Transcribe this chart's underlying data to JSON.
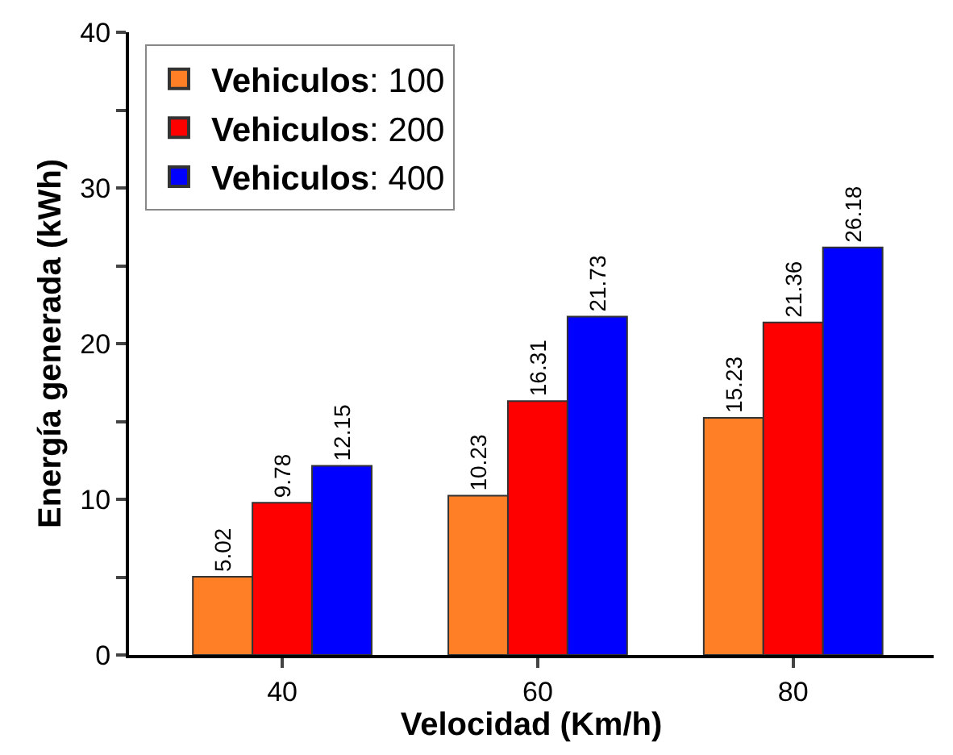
{
  "chart_data": {
    "type": "bar",
    "xlabel": "Velocidad (Km/h)",
    "ylabel": "Energía generada (kWh)",
    "categories": [
      "40",
      "60",
      "80"
    ],
    "series": [
      {
        "name": "Vehiculos: 100",
        "color": "#ff7f27",
        "values": [
          5.02,
          10.23,
          15.23
        ]
      },
      {
        "name": "Vehiculos: 200",
        "color": "#ff0000",
        "values": [
          9.78,
          16.31,
          21.36
        ]
      },
      {
        "name": "Vehiculos: 400",
        "color": "#0000ff",
        "values": [
          12.15,
          21.73,
          26.18
        ]
      }
    ],
    "ylim": [
      0,
      40
    ],
    "yticks": [
      0,
      {
        "value": 5,
        "label": null
      },
      10,
      {
        "value": 15,
        "label": null
      },
      20,
      {
        "value": 25,
        "label": null
      },
      30,
      {
        "value": 35,
        "label": null
      },
      40
    ],
    "data_labels": true,
    "legend": "top left"
  }
}
